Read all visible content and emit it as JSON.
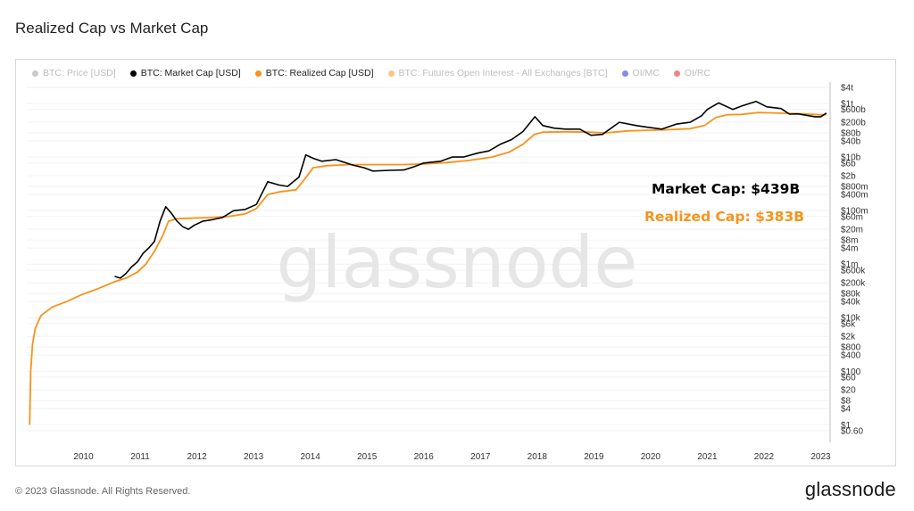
{
  "page": {
    "title": "Realized Cap vs Market Cap"
  },
  "legend": {
    "items": [
      {
        "label": "BTC: Price [USD]",
        "color": "#9e9e9e",
        "active": false
      },
      {
        "label": "BTC: Market Cap [USD]",
        "color": "#000000",
        "active": true
      },
      {
        "label": "BTC: Realized Cap [USD]",
        "color": "#f7931a",
        "active": true
      },
      {
        "label": "BTC: Futures Open Interest - All Exchanges [BTC]",
        "color": "#f7931a",
        "active": false
      },
      {
        "label": "OI/MC",
        "color": "#1d2bd6",
        "active": false
      },
      {
        "label": "OI/RC",
        "color": "#e01e1e",
        "active": false
      }
    ]
  },
  "annotations": {
    "market_cap": "Market Cap: $439B",
    "realized_cap": "Realized Cap: $383B"
  },
  "watermark": "glassnode",
  "footer": {
    "copyright": "© 2023 Glassnode. All Rights Reserved.",
    "logo": "glassnode"
  },
  "colors": {
    "market_cap": "#000000",
    "realized_cap": "#f7931a",
    "watermark": "#e6e6e6",
    "grid": "#f2f2f2"
  },
  "chart_data": {
    "type": "line",
    "title": "Realized Cap vs Market Cap",
    "y_scale": "log",
    "ylim": [
      0.3,
      4000000000000
    ],
    "xlim": [
      2009.0,
      2023.15
    ],
    "x_ticks": [
      2010,
      2011,
      2012,
      2013,
      2014,
      2015,
      2016,
      2017,
      2018,
      2019,
      2020,
      2021,
      2022,
      2023
    ],
    "y_ticks": [
      {
        "label": "$4t",
        "value": 4000000000000
      },
      {
        "label": "$1t",
        "value": 1000000000000
      },
      {
        "label": "$600b",
        "value": 600000000000
      },
      {
        "label": "$200b",
        "value": 200000000000
      },
      {
        "label": "$80b",
        "value": 80000000000
      },
      {
        "label": "$40b",
        "value": 40000000000
      },
      {
        "label": "$10b",
        "value": 10000000000
      },
      {
        "label": "$6b",
        "value": 6000000000
      },
      {
        "label": "$2b",
        "value": 2000000000
      },
      {
        "label": "$800m",
        "value": 800000000
      },
      {
        "label": "$400m",
        "value": 400000000
      },
      {
        "label": "$100m",
        "value": 100000000
      },
      {
        "label": "$60m",
        "value": 60000000
      },
      {
        "label": "$20m",
        "value": 20000000
      },
      {
        "label": "$8m",
        "value": 8000000
      },
      {
        "label": "$4m",
        "value": 4000000
      },
      {
        "label": "$1m",
        "value": 1000000
      },
      {
        "label": "$600k",
        "value": 600000
      },
      {
        "label": "$200k",
        "value": 200000
      },
      {
        "label": "$80k",
        "value": 80000
      },
      {
        "label": "$40k",
        "value": 40000
      },
      {
        "label": "$10k",
        "value": 10000
      },
      {
        "label": "$6k",
        "value": 6000
      },
      {
        "label": "$2k",
        "value": 2000
      },
      {
        "label": "$800",
        "value": 800
      },
      {
        "label": "$400",
        "value": 400
      },
      {
        "label": "$100",
        "value": 100
      },
      {
        "label": "$60",
        "value": 60
      },
      {
        "label": "$20",
        "value": 20
      },
      {
        "label": "$8",
        "value": 8
      },
      {
        "label": "$4",
        "value": 4
      },
      {
        "label": "$1",
        "value": 1
      },
      {
        "label": "$0.60",
        "value": 0.6
      }
    ],
    "series": [
      {
        "name": "BTC: Market Cap [USD]",
        "color": "#000000",
        "points": [
          [
            2010.55,
            350000
          ],
          [
            2010.65,
            300000
          ],
          [
            2010.75,
            450000
          ],
          [
            2010.85,
            800000
          ],
          [
            2010.95,
            1200000
          ],
          [
            2011.05,
            2500000
          ],
          [
            2011.15,
            4000000
          ],
          [
            2011.25,
            7000000
          ],
          [
            2011.35,
            40000000
          ],
          [
            2011.45,
            140000000
          ],
          [
            2011.55,
            80000000
          ],
          [
            2011.65,
            40000000
          ],
          [
            2011.75,
            25000000
          ],
          [
            2011.85,
            20000000
          ],
          [
            2011.95,
            28000000
          ],
          [
            2012.1,
            40000000
          ],
          [
            2012.25,
            45000000
          ],
          [
            2012.45,
            55000000
          ],
          [
            2012.65,
            100000000
          ],
          [
            2012.85,
            110000000
          ],
          [
            2013.05,
            170000000
          ],
          [
            2013.25,
            1200000000
          ],
          [
            2013.45,
            900000000
          ],
          [
            2013.6,
            800000000
          ],
          [
            2013.8,
            1800000000
          ],
          [
            2013.92,
            12000000000
          ],
          [
            2014.05,
            9000000000
          ],
          [
            2014.2,
            7000000000
          ],
          [
            2014.45,
            8000000000
          ],
          [
            2014.75,
            5000000000
          ],
          [
            2014.95,
            4000000000
          ],
          [
            2015.1,
            3000000000
          ],
          [
            2015.4,
            3200000000
          ],
          [
            2015.65,
            3300000000
          ],
          [
            2015.85,
            4500000000
          ],
          [
            2016.0,
            6000000000
          ],
          [
            2016.3,
            7000000000
          ],
          [
            2016.5,
            10000000000
          ],
          [
            2016.7,
            10000000000
          ],
          [
            2016.95,
            14000000000
          ],
          [
            2017.15,
            17000000000
          ],
          [
            2017.35,
            30000000000
          ],
          [
            2017.55,
            45000000000
          ],
          [
            2017.75,
            90000000000
          ],
          [
            2017.96,
            320000000000
          ],
          [
            2018.1,
            150000000000
          ],
          [
            2018.3,
            120000000000
          ],
          [
            2018.5,
            110000000000
          ],
          [
            2018.75,
            110000000000
          ],
          [
            2018.95,
            65000000000
          ],
          [
            2019.15,
            70000000000
          ],
          [
            2019.45,
            200000000000
          ],
          [
            2019.75,
            150000000000
          ],
          [
            2019.95,
            130000000000
          ],
          [
            2020.2,
            110000000000
          ],
          [
            2020.45,
            170000000000
          ],
          [
            2020.7,
            200000000000
          ],
          [
            2020.9,
            350000000000
          ],
          [
            2021.0,
            600000000000
          ],
          [
            2021.2,
            1050000000000
          ],
          [
            2021.45,
            600000000000
          ],
          [
            2021.6,
            800000000000
          ],
          [
            2021.86,
            1200000000000
          ],
          [
            2022.05,
            750000000000
          ],
          [
            2022.3,
            650000000000
          ],
          [
            2022.45,
            400000000000
          ],
          [
            2022.6,
            410000000000
          ],
          [
            2022.9,
            320000000000
          ],
          [
            2023.0,
            320000000000
          ],
          [
            2023.1,
            439000000000
          ]
        ]
      },
      {
        "name": "BTC: Realized Cap [USD]",
        "color": "#f7931a",
        "points": [
          [
            2009.05,
            1
          ],
          [
            2009.07,
            100
          ],
          [
            2009.1,
            1000
          ],
          [
            2009.15,
            4000
          ],
          [
            2009.25,
            12000
          ],
          [
            2009.45,
            25000
          ],
          [
            2009.7,
            40000
          ],
          [
            2009.95,
            70000
          ],
          [
            2010.25,
            120000
          ],
          [
            2010.55,
            220000
          ],
          [
            2010.75,
            300000
          ],
          [
            2010.95,
            500000
          ],
          [
            2011.1,
            1000000
          ],
          [
            2011.25,
            3000000
          ],
          [
            2011.4,
            12000000
          ],
          [
            2011.5,
            40000000
          ],
          [
            2011.65,
            50000000
          ],
          [
            2011.9,
            52000000
          ],
          [
            2012.25,
            55000000
          ],
          [
            2012.55,
            60000000
          ],
          [
            2012.85,
            75000000
          ],
          [
            2013.05,
            120000000
          ],
          [
            2013.25,
            400000000
          ],
          [
            2013.45,
            500000000
          ],
          [
            2013.75,
            600000000
          ],
          [
            2013.9,
            1500000000
          ],
          [
            2014.05,
            4000000000
          ],
          [
            2014.3,
            4800000000
          ],
          [
            2014.7,
            5200000000
          ],
          [
            2015.1,
            5200000000
          ],
          [
            2015.6,
            5200000000
          ],
          [
            2016.0,
            5500000000
          ],
          [
            2016.4,
            6200000000
          ],
          [
            2016.8,
            7500000000
          ],
          [
            2017.2,
            10000000000
          ],
          [
            2017.5,
            15000000000
          ],
          [
            2017.75,
            30000000000
          ],
          [
            2017.95,
            70000000000
          ],
          [
            2018.1,
            85000000000
          ],
          [
            2018.5,
            88000000000
          ],
          [
            2018.9,
            85000000000
          ],
          [
            2019.2,
            80000000000
          ],
          [
            2019.6,
            95000000000
          ],
          [
            2019.95,
            100000000000
          ],
          [
            2020.3,
            105000000000
          ],
          [
            2020.7,
            115000000000
          ],
          [
            2020.95,
            150000000000
          ],
          [
            2021.15,
            300000000000
          ],
          [
            2021.35,
            380000000000
          ],
          [
            2021.6,
            390000000000
          ],
          [
            2021.9,
            460000000000
          ],
          [
            2022.1,
            450000000000
          ],
          [
            2022.4,
            430000000000
          ],
          [
            2022.7,
            410000000000
          ],
          [
            2023.0,
            380000000000
          ],
          [
            2023.1,
            383000000000
          ]
        ]
      }
    ]
  }
}
